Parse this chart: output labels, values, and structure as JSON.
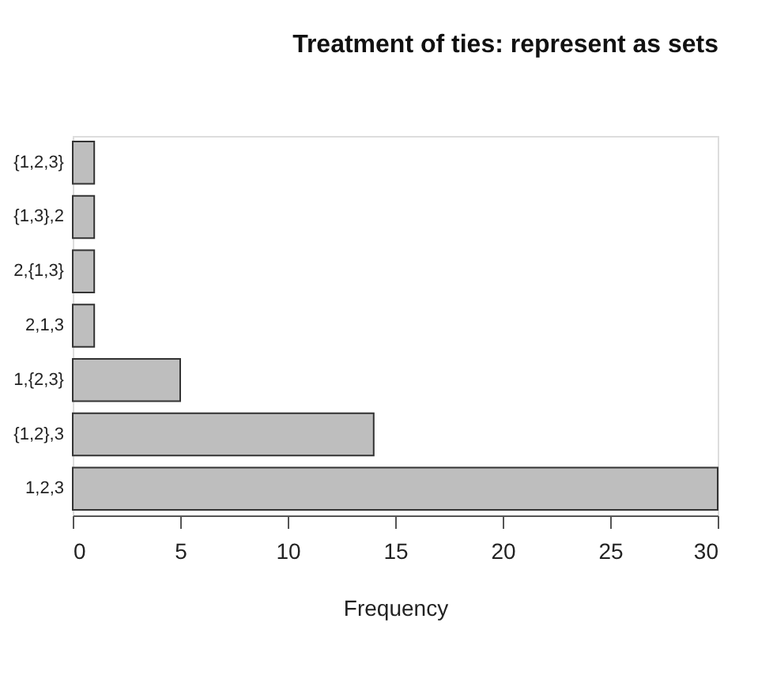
{
  "chart_data": {
    "type": "bar",
    "orientation": "horizontal",
    "title": "Treatment of ties: represent as sets",
    "xlabel": "Frequency",
    "categories": [
      "{1,2,3}",
      "{1,3},2",
      "2,{1,3}",
      "2,1,3",
      "1,{2,3}",
      "{1,2},3",
      "1,2,3"
    ],
    "values": [
      1,
      1,
      1,
      1,
      5,
      14,
      30
    ],
    "color": "#bebebe",
    "xlim": [
      0,
      30
    ],
    "xticks": [
      0,
      5,
      10,
      15,
      20,
      25,
      30
    ],
    "grid": false
  }
}
